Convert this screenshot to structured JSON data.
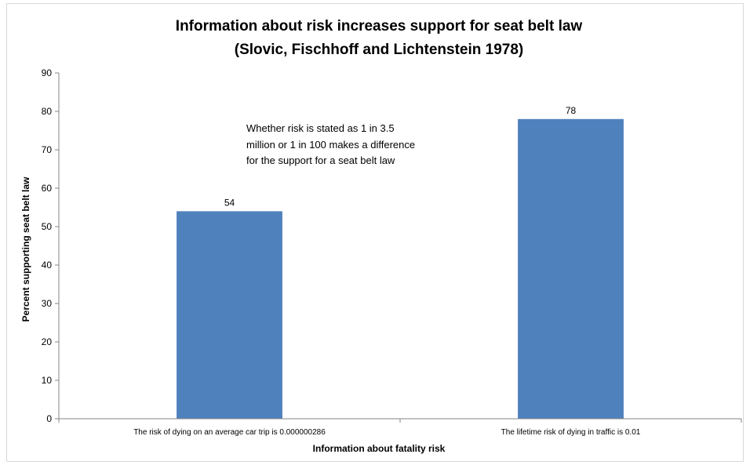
{
  "chart_data": {
    "type": "bar",
    "title_lines": [
      "Information about risk increases support for seat belt law",
      "(Slovic, Fischhoff and Lichtenstein 1978)"
    ],
    "categories": [
      "The risk of dying on an average car trip is 0.000000286",
      "The lifetime risk of dying in traffic is 0.01"
    ],
    "values": [
      54,
      78
    ],
    "data_labels": [
      "54",
      "78"
    ],
    "xlabel": "Information about fatality risk",
    "ylabel": "Percent supporting seat belt law",
    "ylim": [
      0,
      90
    ],
    "yticks": [
      0,
      10,
      20,
      30,
      40,
      50,
      60,
      70,
      80,
      90
    ],
    "annotation_lines": [
      "Whether risk is stated as 1 in 3.5",
      "million or 1 in 100 makes a difference",
      "for the support for a seat belt law"
    ],
    "grid": false,
    "legend": "none",
    "bar_color": "#4f81bd"
  }
}
